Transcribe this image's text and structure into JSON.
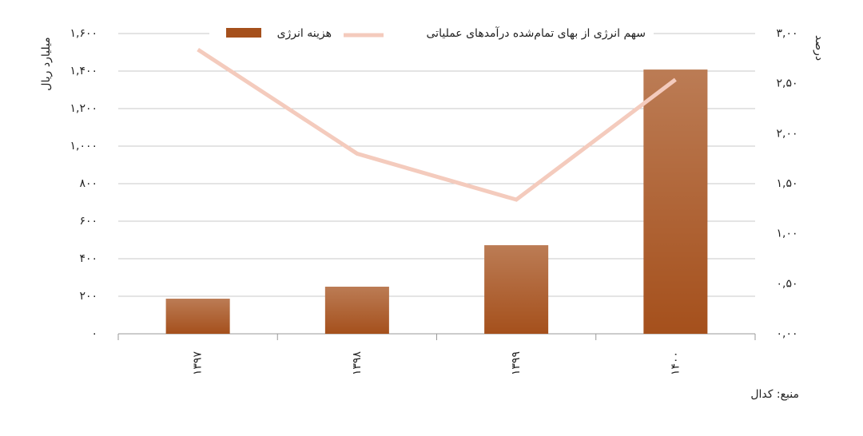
{
  "chart_data": {
    "type": "bar-line",
    "y_label": "میلیارد ریال",
    "y2_label": "درصد",
    "source": "منبع: کدال",
    "categories": [
      "۱۳۹۷",
      "۱۳۹۸",
      "۱۳۹۹",
      "۱۴۰۰"
    ],
    "series": [
      {
        "name": "هزینه انرژی",
        "type": "bar",
        "color": "#a5501c",
        "values": [
          187,
          251,
          472,
          1408
        ]
      },
      {
        "name": "سهم انرژی از بهای تمام‌شده درآمدهای عملیاتی",
        "type": "line",
        "axis": "y2",
        "color": "#f4cbbd",
        "values": [
          2.84,
          1.8,
          1.34,
          2.54
        ]
      }
    ],
    "ylim": [
      0,
      1600
    ],
    "yticks": [
      {
        "value": 0,
        "label": "۰"
      },
      {
        "value": 200,
        "label": "۲۰۰"
      },
      {
        "value": 400,
        "label": "۴۰۰"
      },
      {
        "value": 600,
        "label": "۶۰۰"
      },
      {
        "value": 800,
        "label": "۸۰۰"
      },
      {
        "value": 1000,
        "label": "۱,۰۰۰"
      },
      {
        "value": 1200,
        "label": "۱,۲۰۰"
      },
      {
        "value": 1400,
        "label": "۱,۴۰۰"
      },
      {
        "value": 1600,
        "label": "۱,۶۰۰"
      }
    ],
    "y2lim": [
      0,
      3
    ],
    "y2ticks": [
      {
        "value": 0,
        "label": "۰,۰۰"
      },
      {
        "value": 0.5,
        "label": "۰,۵۰"
      },
      {
        "value": 1,
        "label": "۱,۰۰"
      },
      {
        "value": 1.5,
        "label": "۱,۵۰"
      },
      {
        "value": 2,
        "label": "۲,۰۰"
      },
      {
        "value": 2.5,
        "label": "۲,۵۰"
      },
      {
        "value": 3,
        "label": "۳,۰۰"
      }
    ],
    "grid": true
  }
}
